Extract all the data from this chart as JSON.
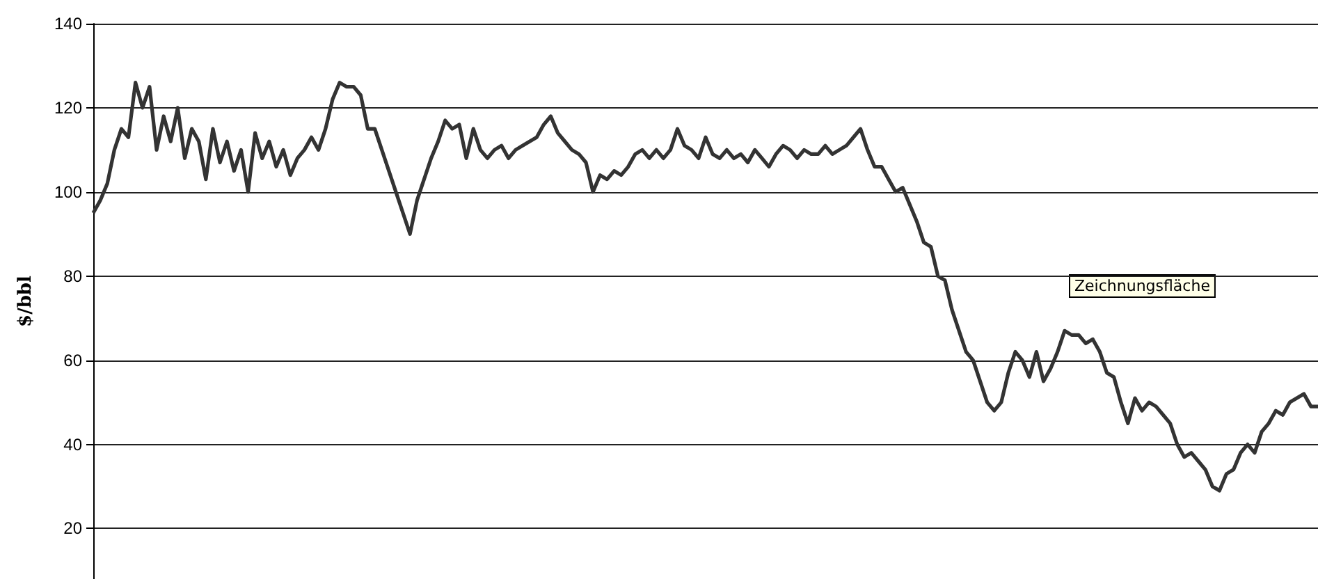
{
  "chart_data": {
    "type": "line",
    "ylabel": "$/bbl",
    "annotations": [
      "Zeichnungsfläche"
    ],
    "categories": [
      null,
      null,
      null,
      null,
      null,
      null,
      null,
      null,
      null,
      null,
      null,
      null,
      null,
      null,
      null,
      null,
      null,
      null,
      null,
      null,
      null,
      null,
      null,
      null,
      null,
      null,
      null,
      null,
      null,
      null,
      null,
      null,
      null,
      null,
      null,
      null,
      null,
      null,
      null,
      null,
      null,
      null,
      null,
      null,
      null,
      null,
      null,
      null,
      null,
      null,
      null,
      null,
      null,
      null,
      null,
      null,
      null,
      null,
      null,
      null,
      null,
      null,
      null,
      null,
      null,
      null,
      null,
      null,
      null,
      null,
      null,
      null,
      null,
      null,
      null,
      null,
      null,
      null,
      null,
      null,
      null,
      null,
      null,
      null,
      null,
      null,
      null,
      null,
      null,
      null,
      null,
      null,
      null,
      null,
      null,
      null,
      null,
      null,
      null,
      null,
      null,
      null,
      null,
      null,
      null,
      null,
      null,
      null,
      null,
      null,
      null,
      null,
      null,
      null,
      null,
      null,
      null,
      null,
      null,
      null,
      null,
      null,
      null,
      null,
      null,
      null,
      null,
      null,
      null,
      null,
      null,
      null,
      null,
      null,
      null,
      null,
      null,
      null,
      null,
      null,
      null,
      null,
      null,
      null,
      null,
      null,
      null,
      null,
      null,
      null,
      null,
      null,
      null,
      null,
      null,
      null,
      null,
      null,
      null,
      null,
      null,
      null,
      null,
      null,
      null,
      null,
      null,
      null,
      null,
      null,
      null,
      null,
      null,
      null,
      null
    ],
    "series": [
      {
        "color": "#333333",
        "values": [
          95,
          98,
          102,
          110,
          115,
          113,
          126,
          120,
          125,
          110,
          118,
          112,
          120,
          108,
          115,
          112,
          103,
          115,
          107,
          112,
          105,
          110,
          100,
          114,
          108,
          112,
          106,
          110,
          104,
          108,
          110,
          113,
          110,
          115,
          122,
          126,
          125,
          125,
          123,
          115,
          115,
          110,
          105,
          100,
          95,
          90,
          98,
          103,
          108,
          112,
          117,
          115,
          116,
          108,
          115,
          110,
          108,
          110,
          111,
          108,
          110,
          111,
          112,
          113,
          116,
          118,
          114,
          112,
          110,
          109,
          107,
          100,
          104,
          103,
          105,
          104,
          106,
          109,
          110,
          108,
          110,
          108,
          110,
          115,
          111,
          110,
          108,
          113,
          109,
          108,
          110,
          108,
          109,
          107,
          110,
          108,
          106,
          109,
          111,
          110,
          108,
          110,
          109,
          109,
          111,
          109,
          110,
          111,
          113,
          115,
          110,
          106,
          106,
          103,
          100,
          101,
          97,
          93,
          88,
          87,
          80,
          79,
          72,
          67,
          62,
          60,
          55,
          50,
          48,
          50,
          57,
          62,
          60,
          56,
          62,
          55,
          58,
          62,
          67,
          66,
          66,
          64,
          65,
          62,
          57,
          56,
          50,
          45,
          51,
          48,
          50,
          49,
          47,
          45,
          40,
          37,
          38,
          36,
          34,
          30,
          29,
          33,
          34,
          38,
          40,
          38,
          43,
          45,
          48,
          47,
          50,
          51,
          52,
          49,
          49
        ]
      }
    ],
    "ylim": [
      8,
      140
    ],
    "yticks": [
      20,
      40,
      60,
      80,
      100,
      120,
      140
    ],
    "grid": "y",
    "tick_labels": "y",
    "line_style": "solid"
  }
}
